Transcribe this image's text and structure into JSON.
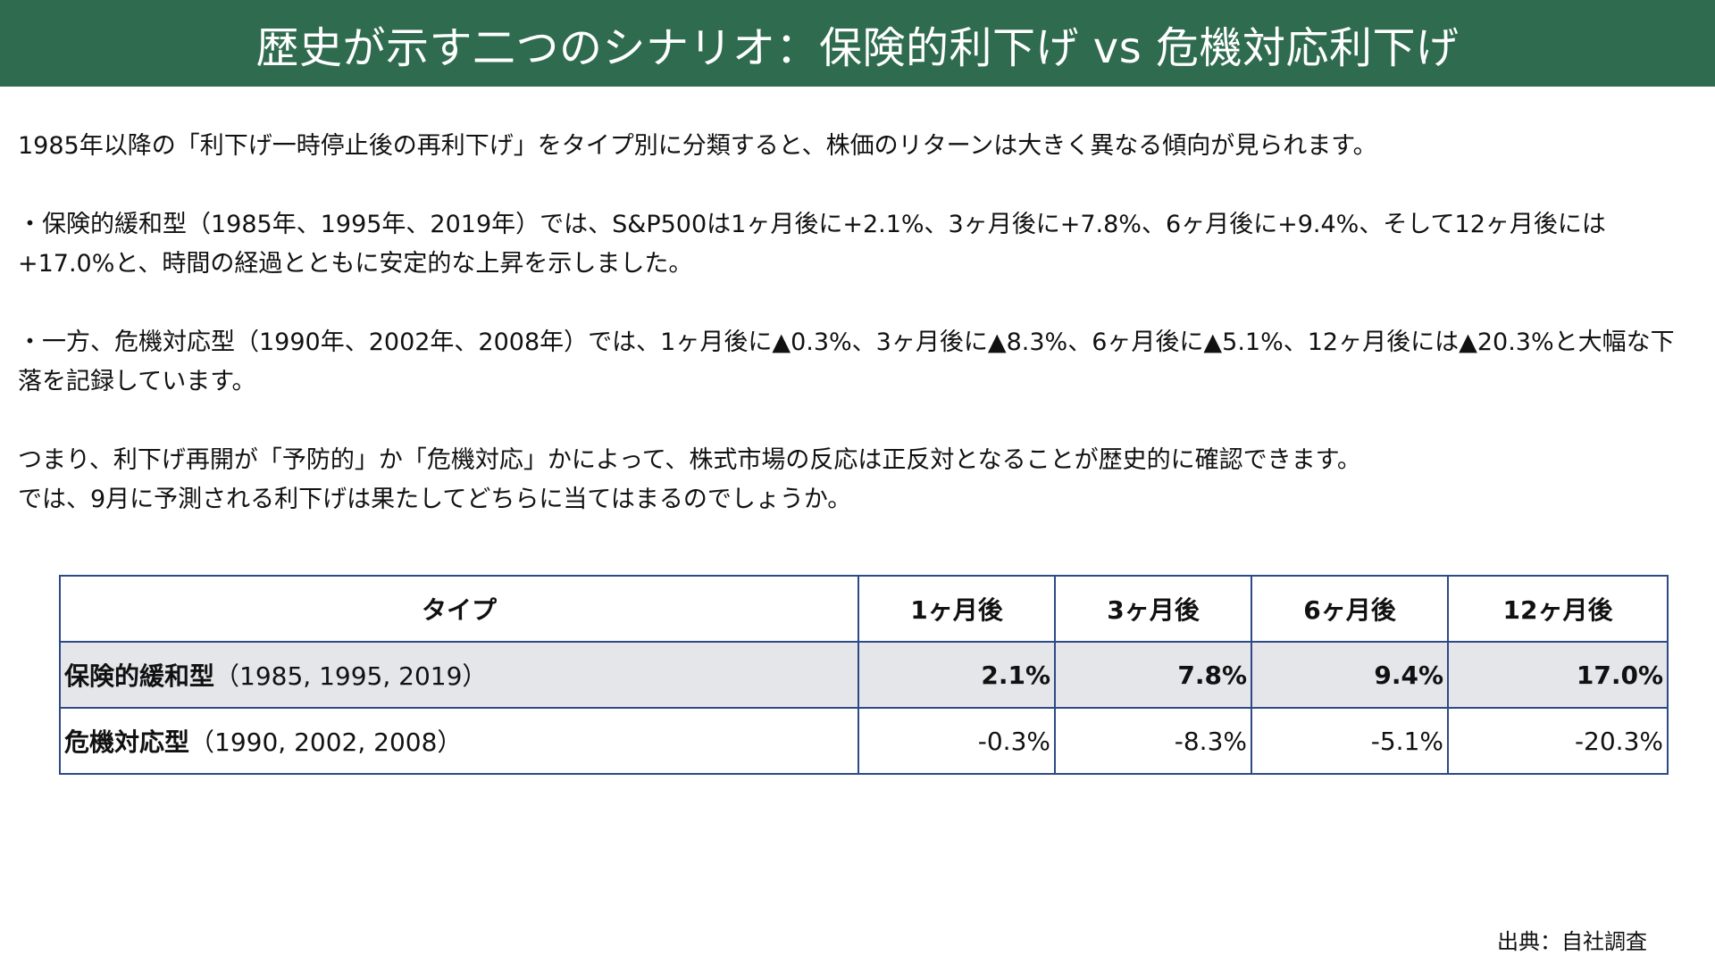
{
  "header": {
    "title": "歴史が示す二つのシナリオ：保険的利下げ vs 危機対応利下げ"
  },
  "body": {
    "paragraphs": [
      "1985年以降の「利下げ一時停止後の再利下げ」をタイプ別に分類すると、株価のリターンは大きく異なる傾向が見られます。",
      "・保険的緩和型（1985年、1995年、2019年）では、S&P500は1ヶ月後に+2.1%、3ヶ月後に+7.8%、6ヶ月後に+9.4%、そして12ヶ月後には+17.0%と、時間の経過とともに安定的な上昇を示しました。",
      "・一方、危機対応型（1990年、2002年、2008年）では、1ヶ月後に▲0.3%、3ヶ月後に▲8.3%、6ヶ月後に▲5.1%、12ヶ月後には▲20.3%と大幅な下落を記録しています。",
      "つまり、利下げ再開が「予防的」か「危機対応」かによって、株式市場の反応は正反対となることが歴史的に確認できます。\nでは、9月に予測される利下げは果たしてどちらに当てはまるのでしょうか。"
    ]
  },
  "table": {
    "headers": [
      "タイプ",
      "1ヶ月後",
      "3ヶ月後",
      "6ヶ月後",
      "12ヶ月後"
    ],
    "rows": [
      {
        "type": "保険的緩和型",
        "years": "（1985, 1995, 2019）",
        "values": [
          "2.1%",
          "7.8%",
          "9.4%",
          "17.0%"
        ]
      },
      {
        "type": "危機対応型",
        "years": "（1990, 2002, 2008）",
        "values": [
          "-0.3%",
          "-8.3%",
          "-5.1%",
          "-20.3%"
        ]
      }
    ]
  },
  "source": "出典：自社調査",
  "colors": {
    "header_bg": "#2f6b4f",
    "table_border": "#2d4a86",
    "highlight_row_bg": "#e4e6ea"
  }
}
